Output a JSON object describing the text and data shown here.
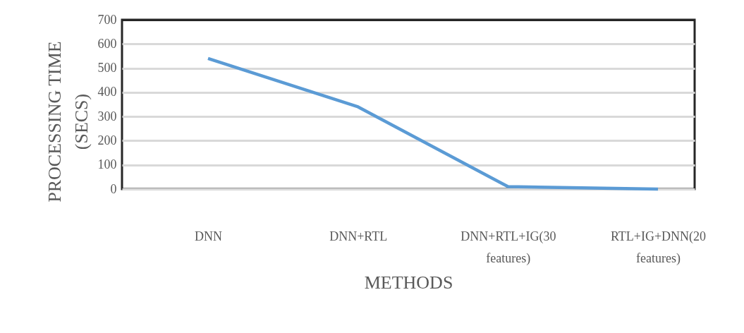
{
  "chart_data": {
    "type": "line",
    "xlabel": "METHODS",
    "ylabel": "PROCESSING TIME (SECS)",
    "categories": [
      "DNN",
      "DNN+RTL",
      "DNN+RTL+IG(30 features)",
      "RTL+IG+DNN(20 features)"
    ],
    "series": [
      {
        "color": "#5b9bd5",
        "values": [
          540,
          340,
          10,
          0
        ]
      }
    ],
    "ylim": [
      0,
      700
    ],
    "yticks": [
      0,
      100,
      200,
      300,
      400,
      500,
      600,
      700
    ],
    "grid": "y",
    "marker": "none",
    "line_style": "solid"
  }
}
